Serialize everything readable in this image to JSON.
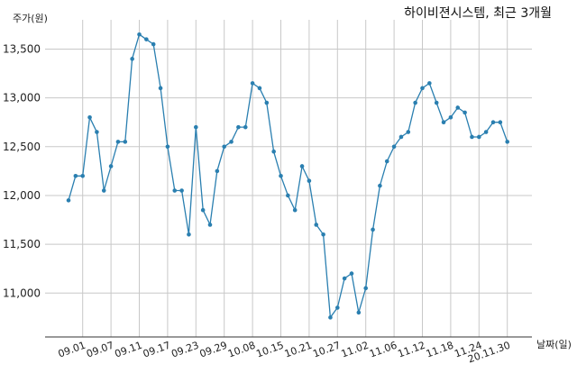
{
  "chart_data": {
    "type": "line",
    "title": "하이비젼시스템, 최근 3개월",
    "ylabel": "주가(원)",
    "xlabel": "날짜(일)",
    "ylim": [
      10550,
      13800
    ],
    "yticks": [
      11000,
      11500,
      12000,
      12500,
      13000,
      13500
    ],
    "ytick_labels": [
      "11,000",
      "11,500",
      "12,000",
      "12,500",
      "13,000",
      "13,500"
    ],
    "xticks": [
      {
        "index": 2,
        "label": "09.01"
      },
      {
        "index": 6,
        "label": "09.07"
      },
      {
        "index": 10,
        "label": "09.11"
      },
      {
        "index": 14,
        "label": "09.17"
      },
      {
        "index": 18,
        "label": "09.23"
      },
      {
        "index": 22,
        "label": "09.29"
      },
      {
        "index": 26,
        "label": "10.08"
      },
      {
        "index": 30,
        "label": "10.15"
      },
      {
        "index": 34,
        "label": "10.21"
      },
      {
        "index": 38,
        "label": "10.27"
      },
      {
        "index": 42,
        "label": "11.02"
      },
      {
        "index": 46,
        "label": "11.06"
      },
      {
        "index": 50,
        "label": "11.12"
      },
      {
        "index": 54,
        "label": "11.18"
      },
      {
        "index": 58,
        "label": "11.24"
      },
      {
        "index": 62,
        "label": "20.11.30"
      }
    ],
    "grid": true,
    "color": "#2a7fb0",
    "values": [
      11950,
      12200,
      12200,
      12800,
      12650,
      12050,
      12300,
      12550,
      12550,
      13400,
      13650,
      13600,
      13550,
      13100,
      12500,
      12050,
      12050,
      11600,
      12700,
      11850,
      11700,
      12250,
      12500,
      12550,
      12700,
      12700,
      13150,
      13100,
      12950,
      12450,
      12200,
      12000,
      11850,
      12300,
      12150,
      11700,
      11600,
      10750,
      10850,
      11150,
      11200,
      10800,
      11050,
      11650,
      12100,
      12350,
      12500,
      12600,
      12650,
      12950,
      13100,
      13150,
      12950,
      12750,
      12800,
      12900,
      12850,
      12600,
      12600,
      12650,
      12750,
      12750,
      12550
    ]
  }
}
